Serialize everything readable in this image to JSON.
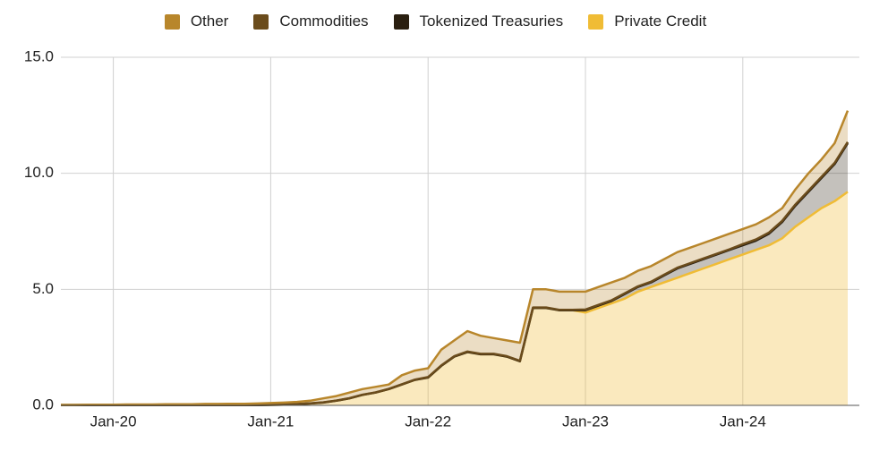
{
  "chart_data": {
    "type": "stacked-area",
    "categories": [
      null,
      null,
      null,
      null,
      "Jan-20",
      null,
      null,
      null,
      null,
      null,
      null,
      null,
      null,
      null,
      null,
      null,
      "Jan-21",
      null,
      null,
      null,
      null,
      null,
      null,
      null,
      null,
      null,
      null,
      null,
      "Jan-22",
      null,
      null,
      null,
      null,
      null,
      null,
      null,
      null,
      null,
      null,
      null,
      "Jan-23",
      null,
      null,
      null,
      null,
      null,
      null,
      null,
      null,
      null,
      null,
      null,
      "Jan-24",
      null,
      null,
      null,
      null,
      null,
      null,
      null,
      null
    ],
    "series": [
      {
        "name": "Private Credit",
        "color": "#f0bc35",
        "values": [
          0.01,
          0.01,
          0.01,
          0.01,
          0.01,
          0.01,
          0.01,
          0.01,
          0.01,
          0.01,
          0.01,
          0.01,
          0.01,
          0.01,
          0.01,
          0.01,
          0.02,
          0.03,
          0.05,
          0.08,
          0.12,
          0.2,
          0.3,
          0.45,
          0.55,
          0.7,
          0.9,
          1.1,
          1.2,
          1.7,
          2.1,
          2.3,
          2.2,
          2.2,
          2.1,
          1.9,
          4.2,
          4.2,
          4.1,
          4.1,
          4.0,
          4.2,
          4.4,
          4.6,
          4.9,
          5.1,
          5.3,
          5.5,
          5.7,
          5.9,
          6.1,
          6.3,
          6.5,
          6.7,
          6.9,
          7.2,
          7.7,
          8.1,
          8.5,
          8.8,
          9.2
        ]
      },
      {
        "name": "Tokenized Treasuries",
        "color": "#2a1f10",
        "values": [
          0,
          0,
          0,
          0,
          0,
          0,
          0,
          0,
          0,
          0,
          0,
          0,
          0,
          0,
          0,
          0,
          0,
          0,
          0,
          0,
          0,
          0,
          0,
          0,
          0,
          0,
          0,
          0,
          0,
          0,
          0,
          0,
          0,
          0,
          0,
          0,
          0,
          0,
          0,
          0,
          0.1,
          0.1,
          0.1,
          0.2,
          0.2,
          0.2,
          0.3,
          0.4,
          0.4,
          0.4,
          0.4,
          0.4,
          0.4,
          0.4,
          0.5,
          0.7,
          0.9,
          1.1,
          1.3,
          1.6,
          2.1
        ]
      },
      {
        "name": "Commodities",
        "color": "#6b4c1c",
        "values": [
          0.01,
          0.01,
          0.01,
          0.01,
          0.01,
          0.01,
          0.01,
          0.01,
          0.01,
          0.01,
          0.01,
          0.01,
          0.01,
          0.01,
          0.01,
          0.01,
          0.01,
          0.01,
          0.01,
          0.01,
          0.01,
          0.01,
          0.01,
          0.01,
          0.01,
          0.01,
          0.01,
          0.01,
          0.02,
          0.02,
          0.02,
          0.02,
          0.02,
          0.02,
          0.02,
          0.02,
          0.02,
          0.02,
          0.02,
          0.02,
          0.03,
          0.03,
          0.03,
          0.03,
          0.03,
          0.03,
          0.03,
          0.03,
          0.03,
          0.03,
          0.03,
          0.03,
          0.05,
          0.05,
          0.05,
          0.05,
          0.05,
          0.05,
          0.05,
          0.05,
          0.05
        ]
      },
      {
        "name": "Other",
        "color": "#b8862b",
        "values": [
          0,
          0,
          0.01,
          0.01,
          0.01,
          0.02,
          0.02,
          0.02,
          0.03,
          0.03,
          0.03,
          0.04,
          0.04,
          0.05,
          0.05,
          0.06,
          0.07,
          0.08,
          0.09,
          0.11,
          0.17,
          0.19,
          0.24,
          0.24,
          0.24,
          0.19,
          0.39,
          0.39,
          0.38,
          0.68,
          0.68,
          0.88,
          0.78,
          0.68,
          0.68,
          0.78,
          0.78,
          0.78,
          0.78,
          0.78,
          0.77,
          0.77,
          0.77,
          0.67,
          0.67,
          0.67,
          0.67,
          0.67,
          0.67,
          0.67,
          0.67,
          0.67,
          0.65,
          0.65,
          0.65,
          0.55,
          0.65,
          0.75,
          0.75,
          0.85,
          1.35
        ]
      }
    ],
    "ylim": [
      0,
      15
    ],
    "yticks": [
      {
        "value": 0,
        "label": "0.0"
      },
      {
        "value": 5,
        "label": "5.0"
      },
      {
        "value": 10,
        "label": "10.0"
      },
      {
        "value": 15,
        "label": "15.0"
      }
    ],
    "grid": true
  }
}
